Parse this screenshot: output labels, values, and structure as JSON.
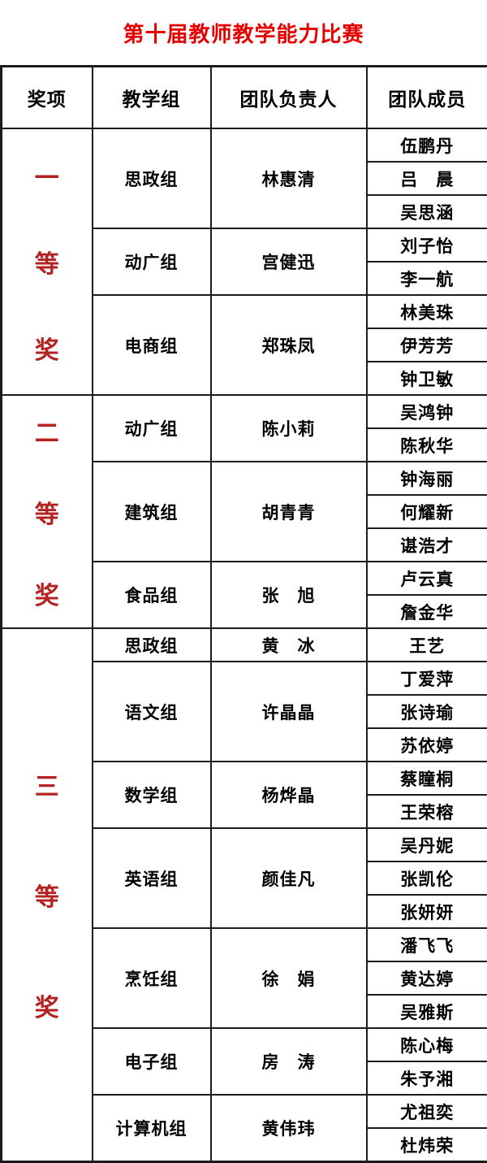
{
  "title": "第十届教师教学能力比赛",
  "columns": {
    "award": "奖项",
    "group": "教学组",
    "leader": "团队负责人",
    "member": "团队成员"
  },
  "colors": {
    "title_red": "#e60000",
    "award_red": "#b42222",
    "border": "#1c1c1c"
  },
  "awards": [
    {
      "award": "一等奖",
      "award_chars": [
        "一",
        "等",
        "奖"
      ],
      "groups": [
        {
          "group": "思政组",
          "leader": "林惠清",
          "members": [
            "伍鹏丹",
            "吕　晨",
            "吴思涵"
          ]
        },
        {
          "group": "动广组",
          "leader": "宫健迅",
          "members": [
            "刘子怡",
            "李一航"
          ]
        },
        {
          "group": "电商组",
          "leader": "郑珠凤",
          "members": [
            "林美珠",
            "伊芳芳",
            "钟卫敏"
          ]
        }
      ]
    },
    {
      "award": "二等奖",
      "award_chars": [
        "二",
        "等",
        "奖"
      ],
      "groups": [
        {
          "group": "动广组",
          "leader": "陈小莉",
          "members": [
            "吴鸿钟",
            "陈秋华"
          ]
        },
        {
          "group": "建筑组",
          "leader": "胡青青",
          "members": [
            "钟海丽",
            "何耀新",
            "谌浩才"
          ]
        },
        {
          "group": "食品组",
          "leader": "张　旭",
          "members": [
            "卢云真",
            "詹金华"
          ]
        }
      ]
    },
    {
      "award": "三等奖",
      "award_chars": [
        "三",
        "等",
        "奖"
      ],
      "groups": [
        {
          "group": "思政组",
          "leader": "黄　冰",
          "members": [
            "王艺"
          ]
        },
        {
          "group": "语文组",
          "leader": "许晶晶",
          "members": [
            "丁爱萍",
            "张诗瑜",
            "苏依婷"
          ]
        },
        {
          "group": "数学组",
          "leader": "杨烨晶",
          "members": [
            "蔡瞳桐",
            "王荣榕"
          ]
        },
        {
          "group": "英语组",
          "leader": "颜佳凡",
          "members": [
            "吴丹妮",
            "张凯伦",
            "张妍妍"
          ]
        },
        {
          "group": "烹饪组",
          "leader": "徐　娟",
          "members": [
            "潘飞飞",
            "黄达婷",
            "吴雅斯"
          ]
        },
        {
          "group": "电子组",
          "leader": "房　涛",
          "members": [
            "陈心梅",
            "朱予湘"
          ]
        },
        {
          "group": "计算机组",
          "leader": "黄伟玮",
          "members": [
            "尤祖奕",
            "杜炜荣"
          ]
        }
      ]
    }
  ]
}
